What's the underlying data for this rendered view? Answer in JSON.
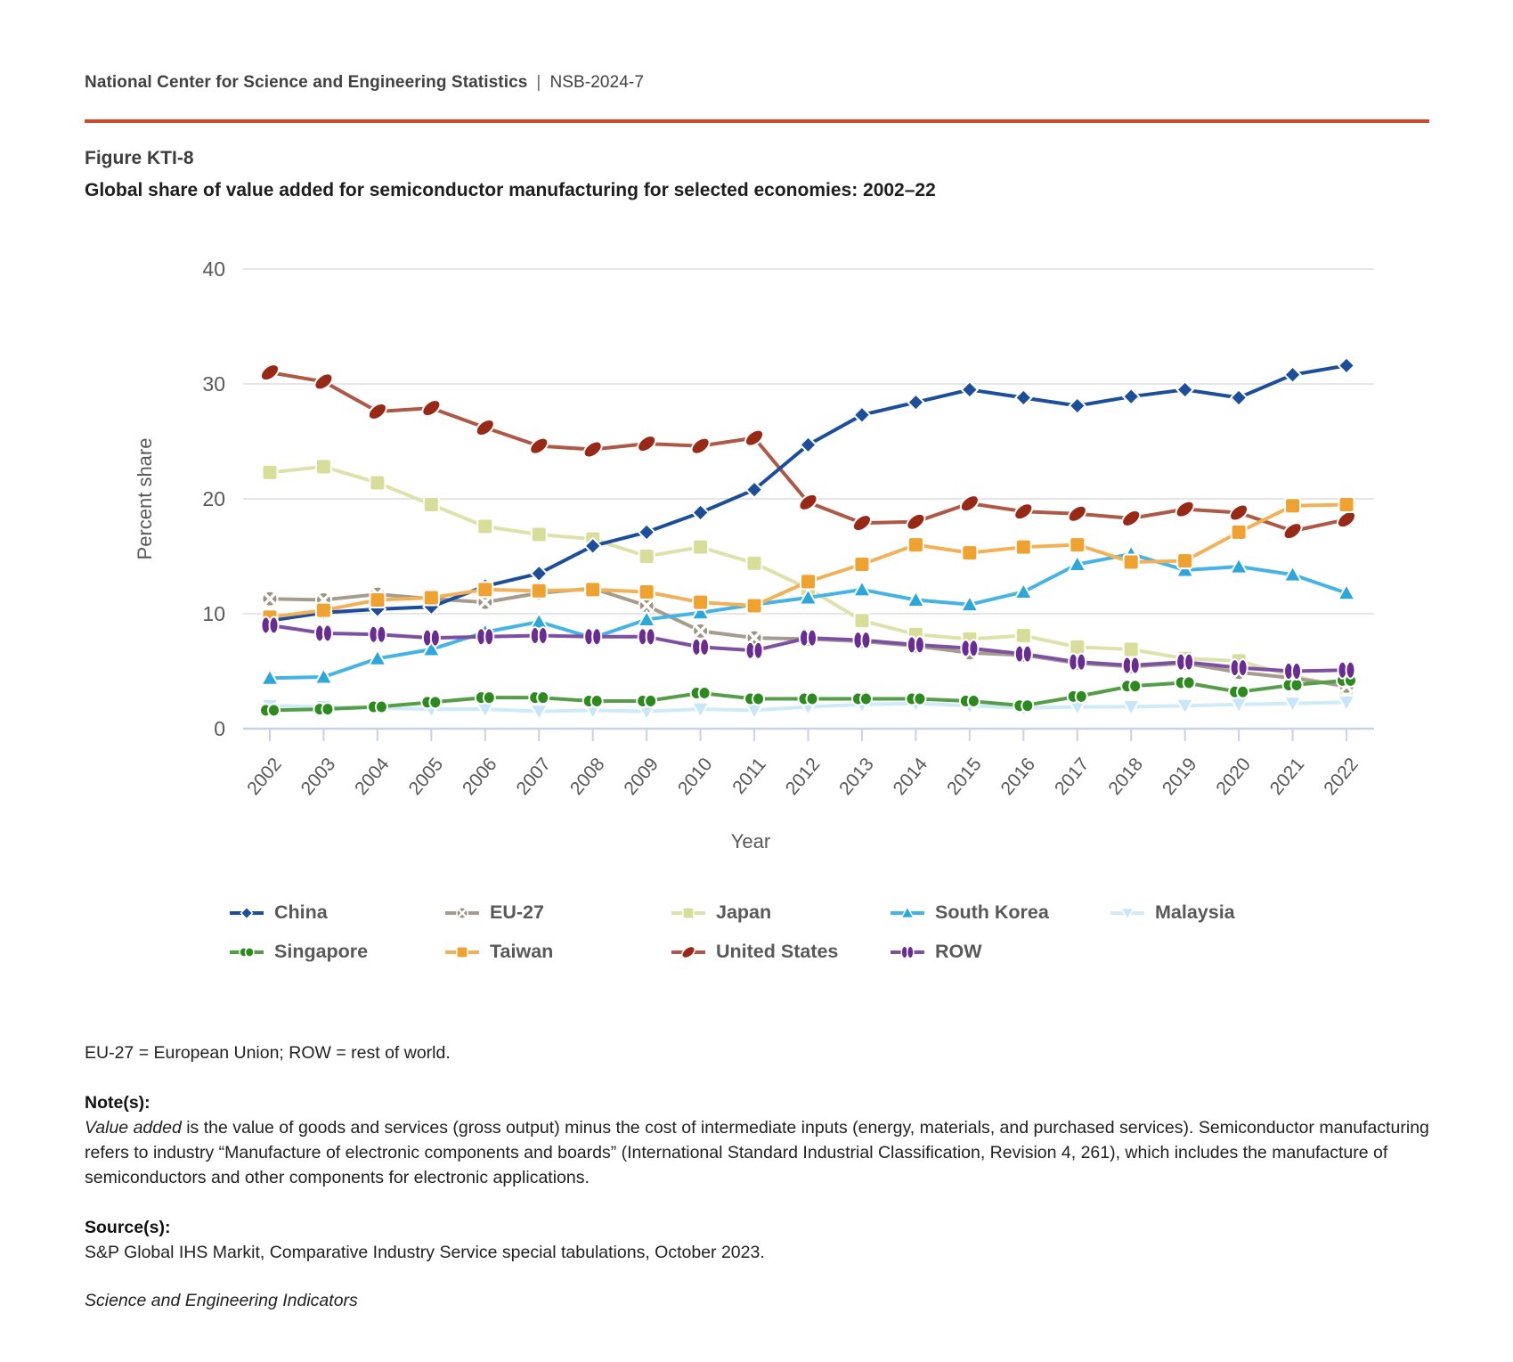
{
  "header": {
    "org": "National Center for Science and Engineering Statistics",
    "separator": "|",
    "report_id": "NSB-2024-7"
  },
  "figure": {
    "label": "Figure KTI-8",
    "title": "Global share of value added for semiconductor manufacturing for selected economies: 2002–22"
  },
  "chart_data": {
    "type": "line",
    "x": [
      2002,
      2003,
      2004,
      2005,
      2006,
      2007,
      2008,
      2009,
      2010,
      2011,
      2012,
      2013,
      2014,
      2015,
      2016,
      2017,
      2018,
      2019,
      2020,
      2021,
      2022
    ],
    "xlabel": "Year",
    "ylabel": "Percent share",
    "ylim": [
      0,
      40
    ],
    "y_ticks": [
      0,
      10,
      20,
      30,
      40
    ],
    "grid": "horizontal-only",
    "legend_position": "bottom",
    "series": [
      {
        "name": "China",
        "marker": "diamond",
        "color": "#1c4e9b",
        "line_color": "#1c4e9b",
        "values": [
          9.4,
          10.1,
          10.4,
          10.6,
          12.4,
          13.5,
          15.9,
          17.1,
          18.8,
          20.8,
          24.7,
          27.3,
          28.4,
          29.5,
          28.8,
          28.1,
          28.9,
          29.5,
          28.8,
          30.8,
          31.6
        ]
      },
      {
        "name": "EU-27",
        "marker": "circle-x",
        "color": "#9c9382",
        "line_color": "#a59c8d",
        "values": [
          11.3,
          11.2,
          11.7,
          11.3,
          11.0,
          11.8,
          12.2,
          10.7,
          8.5,
          7.9,
          7.8,
          7.6,
          7.2,
          6.6,
          6.4,
          5.7,
          5.4,
          5.7,
          4.9,
          4.4,
          3.7
        ]
      },
      {
        "name": "Japan",
        "marker": "square",
        "color": "#d8de99",
        "line_color": "#dde2aa",
        "values": [
          22.3,
          22.8,
          21.4,
          19.5,
          17.6,
          16.9,
          16.5,
          15.0,
          15.8,
          14.4,
          12.2,
          9.4,
          8.2,
          7.8,
          8.1,
          7.1,
          6.9,
          6.1,
          5.9,
          4.6,
          3.6
        ]
      },
      {
        "name": "South Korea",
        "marker": "triangle-up",
        "color": "#2ca6db",
        "line_color": "#45b4e5",
        "values": [
          4.4,
          4.5,
          6.1,
          6.9,
          8.4,
          9.3,
          7.9,
          9.5,
          10.1,
          10.8,
          11.4,
          12.1,
          11.2,
          10.8,
          11.9,
          14.3,
          15.2,
          13.8,
          14.1,
          13.4,
          11.8
        ]
      },
      {
        "name": "Malaysia",
        "marker": "triangle-down",
        "color": "#c7e7f8",
        "line_color": "#cfeaf8",
        "values": [
          2.0,
          1.9,
          1.8,
          1.7,
          1.7,
          1.5,
          1.6,
          1.5,
          1.7,
          1.6,
          1.9,
          2.1,
          2.2,
          2.0,
          1.8,
          1.9,
          1.9,
          2.0,
          2.1,
          2.2,
          2.3
        ]
      },
      {
        "name": "Singapore",
        "marker": "double-h",
        "color": "#2c8a1e",
        "line_color": "#569d48",
        "values": [
          1.6,
          1.7,
          1.9,
          2.3,
          2.7,
          2.7,
          2.4,
          2.4,
          3.1,
          2.6,
          2.6,
          2.6,
          2.6,
          2.4,
          2.0,
          2.8,
          3.7,
          4.0,
          3.2,
          3.8,
          4.2
        ]
      },
      {
        "name": "Taiwan",
        "marker": "square",
        "color": "#f0a231",
        "line_color": "#f3b157",
        "values": [
          9.7,
          10.3,
          11.2,
          11.4,
          12.1,
          12.0,
          12.1,
          11.9,
          11.0,
          10.7,
          12.8,
          14.3,
          16.0,
          15.3,
          15.8,
          16.0,
          14.5,
          14.6,
          17.1,
          19.4,
          19.5
        ]
      },
      {
        "name": "United States",
        "marker": "ellipse-tilted",
        "color": "#982917",
        "line_color": "#ae5846",
        "values": [
          31.0,
          30.2,
          27.6,
          27.9,
          26.2,
          24.6,
          24.3,
          24.8,
          24.6,
          25.3,
          19.7,
          17.9,
          18.0,
          19.6,
          18.9,
          18.7,
          18.3,
          19.1,
          18.8,
          17.2,
          18.2
        ]
      },
      {
        "name": "ROW",
        "marker": "double-v",
        "color": "#692c90",
        "line_color": "#7e50a2",
        "values": [
          9.0,
          8.3,
          8.2,
          7.9,
          8.0,
          8.1,
          8.0,
          8.0,
          7.1,
          6.8,
          7.9,
          7.7,
          7.3,
          7.0,
          6.5,
          5.8,
          5.5,
          5.8,
          5.3,
          5.0,
          5.1
        ]
      }
    ],
    "z_order": [
      "Malaysia",
      "Japan",
      "EU-27",
      "South Korea",
      "Singapore",
      "United States",
      "China",
      "Taiwan",
      "ROW"
    ]
  },
  "legend": {
    "rows": [
      [
        "China",
        "EU-27",
        "Japan",
        "South Korea",
        "Malaysia"
      ],
      [
        "Singapore",
        "Taiwan",
        "United States",
        "ROW"
      ]
    ],
    "column_lefts": [
      160,
      402,
      656,
      902,
      1149
    ],
    "row_tops": [
      1012,
      1056
    ]
  },
  "notes": {
    "abbrev": "EU-27 = European Union; ROW = rest of world.",
    "notes_label": "Note(s):",
    "note_italic_lead": "Value added",
    "note_body": " is the value of goods and services (gross output) minus the cost of intermediate inputs (energy, materials, and purchased services). Semiconductor manufacturing refers to industry “Manufacture of electronic components and boards” (International Standard Industrial Classification, Revision 4, 261), which includes the manufacture of semiconductors and other components for electronic applications.",
    "source_label": "Source(s):",
    "source_text": "S&P Global IHS Markit, Comparative Industry Service special tabulations, October 2023.",
    "publication": "Science and Engineering Indicators"
  },
  "colors": {
    "divider": "#c84d2b",
    "axis_line": "#c9d1e9",
    "gridline": "#dedede",
    "muted_text": "#595959"
  }
}
